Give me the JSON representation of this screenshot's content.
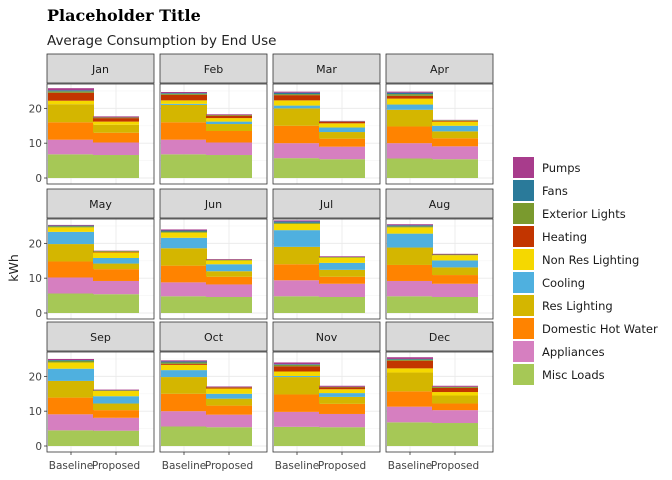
{
  "chart_data": {
    "type": "bar",
    "stacked": true,
    "title": "Placeholder Title",
    "subtitle": "Average Consumption by End Use",
    "ylabel": "kWh",
    "xlabel": "",
    "ylim": [
      0,
      27
    ],
    "yticks": [
      0,
      10,
      20
    ],
    "categories": [
      "Baseline",
      "Proposed"
    ],
    "grid": true,
    "legend_position": "right",
    "series": [
      {
        "name": "Misc Loads",
        "color": "#a6c856"
      },
      {
        "name": "Appliances",
        "color": "#d67fc0"
      },
      {
        "name": "Domestic Hot Water",
        "color": "#ff8300"
      },
      {
        "name": "Res Lighting",
        "color": "#d4b600"
      },
      {
        "name": "Cooling",
        "color": "#4fb0df"
      },
      {
        "name": "Non Res Lighting",
        "color": "#f5d800"
      },
      {
        "name": "Heating",
        "color": "#c23500"
      },
      {
        "name": "Exterior Lights",
        "color": "#7a9a2e"
      },
      {
        "name": "Fans",
        "color": "#2a7a9a"
      },
      {
        "name": "Pumps",
        "color": "#a83c8c"
      }
    ],
    "panels": [
      {
        "month": "Jan",
        "Baseline": [
          6.8,
          4.2,
          5.0,
          5.2,
          0.0,
          1.0,
          2.3,
          0.4,
          0.3,
          0.6
        ],
        "Proposed": [
          6.6,
          3.6,
          2.8,
          2.3,
          0.0,
          0.9,
          1.0,
          0.2,
          0.0,
          0.3
        ]
      },
      {
        "month": "Feb",
        "Baseline": [
          6.8,
          4.2,
          5.0,
          5.0,
          0.3,
          1.0,
          1.6,
          0.3,
          0.2,
          0.3
        ],
        "Proposed": [
          6.6,
          3.6,
          3.3,
          2.0,
          0.7,
          1.0,
          0.7,
          0.2,
          0.0,
          0.2
        ]
      },
      {
        "month": "Mar",
        "Baseline": [
          5.7,
          4.3,
          5.0,
          5.0,
          0.8,
          1.5,
          1.5,
          0.3,
          0.4,
          0.3
        ],
        "Proposed": [
          5.4,
          3.6,
          2.3,
          1.9,
          1.3,
          1.2,
          0.4,
          0.1,
          0.0,
          0.2
        ]
      },
      {
        "month": "Apr",
        "Baseline": [
          5.6,
          4.4,
          4.8,
          4.8,
          1.5,
          1.7,
          0.8,
          0.5,
          0.4,
          0.3
        ],
        "Proposed": [
          5.4,
          3.7,
          2.3,
          2.0,
          1.6,
          1.2,
          0.2,
          0.2,
          0.0,
          0.1
        ]
      },
      {
        "month": "May",
        "Baseline": [
          5.6,
          4.6,
          4.6,
          5.0,
          3.5,
          1.3,
          0.0,
          0.3,
          0.2,
          0.2
        ],
        "Proposed": [
          5.4,
          3.8,
          3.4,
          1.6,
          1.6,
          1.6,
          0.2,
          0.2,
          0.0,
          0.1
        ]
      },
      {
        "month": "Jun",
        "Baseline": [
          4.8,
          4.0,
          4.8,
          5.0,
          3.0,
          1.5,
          0.0,
          0.3,
          0.3,
          0.3
        ],
        "Proposed": [
          4.6,
          3.6,
          2.2,
          1.6,
          2.0,
          1.1,
          0.0,
          0.2,
          0.0,
          0.2
        ]
      },
      {
        "month": "Jul",
        "Baseline": [
          4.8,
          4.6,
          4.6,
          5.0,
          4.8,
          1.8,
          0.0,
          0.3,
          0.4,
          0.3
        ],
        "Proposed": [
          4.6,
          3.8,
          2.0,
          2.0,
          2.0,
          1.5,
          0.0,
          0.2,
          0.0,
          0.2
        ]
      },
      {
        "month": "Aug",
        "Baseline": [
          4.8,
          4.4,
          4.6,
          5.0,
          4.0,
          1.8,
          0.0,
          0.3,
          0.3,
          0.3
        ],
        "Proposed": [
          4.6,
          3.8,
          2.5,
          2.2,
          2.0,
          1.5,
          0.0,
          0.2,
          0.0,
          0.2
        ]
      },
      {
        "month": "Sep",
        "Baseline": [
          4.5,
          4.6,
          4.8,
          4.8,
          3.5,
          1.8,
          0.0,
          0.5,
          0.2,
          0.3
        ],
        "Proposed": [
          4.4,
          3.7,
          2.2,
          1.9,
          2.1,
          1.5,
          0.0,
          0.2,
          0.0,
          0.2
        ]
      },
      {
        "month": "Oct",
        "Baseline": [
          5.6,
          4.4,
          5.0,
          4.8,
          2.0,
          1.5,
          0.3,
          0.4,
          0.3,
          0.3
        ],
        "Proposed": [
          5.4,
          3.6,
          2.6,
          2.0,
          1.4,
          1.5,
          0.3,
          0.1,
          0.0,
          0.2
        ]
      },
      {
        "month": "Nov",
        "Baseline": [
          5.5,
          4.3,
          5.0,
          5.0,
          0.3,
          1.3,
          1.5,
          0.4,
          0.2,
          0.5
        ],
        "Proposed": [
          5.4,
          3.8,
          2.9,
          2.0,
          1.1,
          1.1,
          0.5,
          0.2,
          0.0,
          0.3
        ]
      },
      {
        "month": "Dec",
        "Baseline": [
          6.8,
          4.5,
          4.4,
          5.4,
          0.0,
          1.2,
          2.2,
          0.3,
          0.2,
          0.5
        ],
        "Proposed": [
          6.6,
          3.7,
          1.9,
          2.3,
          0.0,
          1.0,
          1.2,
          0.3,
          0.0,
          0.3
        ]
      }
    ]
  }
}
